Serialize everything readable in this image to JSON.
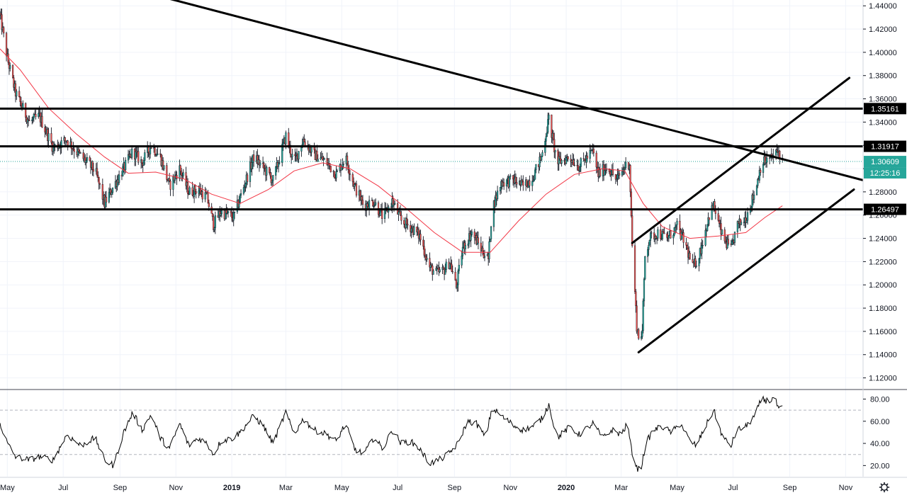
{
  "chart_data": {
    "type": "candlestick",
    "instrument_hint": "",
    "price_axis": {
      "min": 1.11,
      "max": 1.445,
      "ticks": [
        "1.44000",
        "1.42000",
        "1.40000",
        "1.38000",
        "1.36000",
        "1.34000",
        "1.32000",
        "1.30000",
        "1.28000",
        "1.26000",
        "1.24000",
        "1.22000",
        "1.20000",
        "1.18000",
        "1.16000",
        "1.14000",
        "1.12000"
      ]
    },
    "time_axis": {
      "start": "2018-04-23",
      "end": "2020-11-20",
      "labels": [
        {
          "text": "May",
          "date": "2018-05-01"
        },
        {
          "text": "Jul",
          "date": "2018-07-01"
        },
        {
          "text": "Sep",
          "date": "2018-09-01"
        },
        {
          "text": "Nov",
          "date": "2018-11-01"
        },
        {
          "text": "2019",
          "date": "2019-01-01",
          "year": true
        },
        {
          "text": "Mar",
          "date": "2019-03-01"
        },
        {
          "text": "May",
          "date": "2019-05-01"
        },
        {
          "text": "Jul",
          "date": "2019-07-01"
        },
        {
          "text": "Sep",
          "date": "2019-09-01"
        },
        {
          "text": "Nov",
          "date": "2019-11-01"
        },
        {
          "text": "2020",
          "date": "2020-01-01",
          "year": true
        },
        {
          "text": "Mar",
          "date": "2020-03-01"
        },
        {
          "text": "May",
          "date": "2020-05-01"
        },
        {
          "text": "Jul",
          "date": "2020-07-01"
        },
        {
          "text": "Sep",
          "date": "2020-09-01"
        },
        {
          "text": "Nov",
          "date": "2020-11-01"
        }
      ]
    },
    "price_path": [
      [
        "2018-04-23",
        1.432
      ],
      [
        "2018-05-01",
        1.395
      ],
      [
        "2018-05-10",
        1.365
      ],
      [
        "2018-05-25",
        1.34
      ],
      [
        "2018-06-05",
        1.345
      ],
      [
        "2018-06-20",
        1.318
      ],
      [
        "2018-07-05",
        1.325
      ],
      [
        "2018-07-15",
        1.315
      ],
      [
        "2018-07-25",
        1.307
      ],
      [
        "2018-08-05",
        1.298
      ],
      [
        "2018-08-15",
        1.27
      ],
      [
        "2018-08-25",
        1.285
      ],
      [
        "2018-09-05",
        1.3
      ],
      [
        "2018-09-15",
        1.315
      ],
      [
        "2018-09-25",
        1.305
      ],
      [
        "2018-10-05",
        1.32
      ],
      [
        "2018-10-15",
        1.31
      ],
      [
        "2018-10-25",
        1.285
      ],
      [
        "2018-11-05",
        1.3
      ],
      [
        "2018-11-15",
        1.28
      ],
      [
        "2018-11-25",
        1.282
      ],
      [
        "2018-12-05",
        1.275
      ],
      [
        "2018-12-12",
        1.252
      ],
      [
        "2018-12-20",
        1.263
      ],
      [
        "2019-01-03",
        1.258
      ],
      [
        "2019-01-10",
        1.275
      ],
      [
        "2019-01-25",
        1.31
      ],
      [
        "2019-02-05",
        1.3
      ],
      [
        "2019-02-15",
        1.29
      ],
      [
        "2019-03-01",
        1.328
      ],
      [
        "2019-03-10",
        1.305
      ],
      [
        "2019-03-20",
        1.325
      ],
      [
        "2019-04-01",
        1.312
      ],
      [
        "2019-04-15",
        1.305
      ],
      [
        "2019-04-25",
        1.295
      ],
      [
        "2019-05-05",
        1.31
      ],
      [
        "2019-05-15",
        1.285
      ],
      [
        "2019-05-25",
        1.268
      ],
      [
        "2019-06-05",
        1.272
      ],
      [
        "2019-06-15",
        1.258
      ],
      [
        "2019-06-25",
        1.272
      ],
      [
        "2019-07-05",
        1.255
      ],
      [
        "2019-07-15",
        1.25
      ],
      [
        "2019-07-25",
        1.242
      ],
      [
        "2019-08-05",
        1.215
      ],
      [
        "2019-08-12",
        1.21
      ],
      [
        "2019-08-20",
        1.212
      ],
      [
        "2019-08-27",
        1.22
      ],
      [
        "2019-09-03",
        1.198
      ],
      [
        "2019-09-10",
        1.232
      ],
      [
        "2019-09-20",
        1.245
      ],
      [
        "2019-10-01",
        1.23
      ],
      [
        "2019-10-08",
        1.222
      ],
      [
        "2019-10-12",
        1.265
      ],
      [
        "2019-10-22",
        1.288
      ],
      [
        "2019-11-05",
        1.29
      ],
      [
        "2019-11-15",
        1.285
      ],
      [
        "2019-11-25",
        1.292
      ],
      [
        "2019-12-05",
        1.31
      ],
      [
        "2019-12-13",
        1.343
      ],
      [
        "2019-12-22",
        1.305
      ],
      [
        "2020-01-05",
        1.31
      ],
      [
        "2020-01-15",
        1.302
      ],
      [
        "2020-01-30",
        1.315
      ],
      [
        "2020-02-05",
        1.295
      ],
      [
        "2020-02-15",
        1.302
      ],
      [
        "2020-02-25",
        1.29
      ],
      [
        "2020-03-05",
        1.302
      ],
      [
        "2020-03-10",
        1.305
      ],
      [
        "2020-03-13",
        1.235
      ],
      [
        "2020-03-18",
        1.165
      ],
      [
        "2020-03-20",
        1.155
      ],
      [
        "2020-03-24",
        1.16
      ],
      [
        "2020-03-27",
        1.225
      ],
      [
        "2020-04-01",
        1.24
      ],
      [
        "2020-04-10",
        1.245
      ],
      [
        "2020-04-20",
        1.24
      ],
      [
        "2020-05-01",
        1.25
      ],
      [
        "2020-05-10",
        1.235
      ],
      [
        "2020-05-18",
        1.215
      ],
      [
        "2020-05-25",
        1.225
      ],
      [
        "2020-06-05",
        1.26
      ],
      [
        "2020-06-10",
        1.268
      ],
      [
        "2020-06-20",
        1.24
      ],
      [
        "2020-06-29",
        1.23
      ],
      [
        "2020-07-05",
        1.25
      ],
      [
        "2020-07-15",
        1.258
      ],
      [
        "2020-07-25",
        1.28
      ],
      [
        "2020-08-01",
        1.305
      ],
      [
        "2020-08-10",
        1.308
      ],
      [
        "2020-08-20",
        1.315
      ],
      [
        "2020-08-24",
        1.306
      ]
    ],
    "moving_average": [
      [
        "2018-04-23",
        1.403
      ],
      [
        "2018-05-15",
        1.385
      ],
      [
        "2018-06-15",
        1.352
      ],
      [
        "2018-07-15",
        1.33
      ],
      [
        "2018-08-15",
        1.31
      ],
      [
        "2018-09-10",
        1.296
      ],
      [
        "2018-10-10",
        1.297
      ],
      [
        "2018-11-10",
        1.291
      ],
      [
        "2018-12-10",
        1.278
      ],
      [
        "2019-01-10",
        1.27
      ],
      [
        "2019-02-10",
        1.282
      ],
      [
        "2019-03-10",
        1.298
      ],
      [
        "2019-04-10",
        1.305
      ],
      [
        "2019-05-10",
        1.3
      ],
      [
        "2019-06-10",
        1.285
      ],
      [
        "2019-07-10",
        1.266
      ],
      [
        "2019-08-10",
        1.245
      ],
      [
        "2019-09-10",
        1.228
      ],
      [
        "2019-10-10",
        1.228
      ],
      [
        "2019-11-10",
        1.255
      ],
      [
        "2019-12-10",
        1.278
      ],
      [
        "2020-01-10",
        1.295
      ],
      [
        "2020-02-10",
        1.3
      ],
      [
        "2020-03-05",
        1.298
      ],
      [
        "2020-03-25",
        1.27
      ],
      [
        "2020-04-15",
        1.25
      ],
      [
        "2020-05-15",
        1.24
      ],
      [
        "2020-06-15",
        1.242
      ],
      [
        "2020-07-15",
        1.245
      ],
      [
        "2020-08-05",
        1.258
      ],
      [
        "2020-08-24",
        1.268
      ]
    ],
    "horizontal_levels": [
      {
        "label": "1.35161",
        "value": 1.35161
      },
      {
        "label": "1.31917",
        "value": 1.31917
      },
      {
        "label": "1.26497",
        "value": 1.26497
      }
    ],
    "trendlines": [
      {
        "name": "",
        "from": [
          "2018-07-25",
          1.465
        ],
        "to": [
          "2020-11-20",
          1.29
        ]
      },
      {
        "name": "",
        "from": [
          "2020-03-20",
          1.142
        ],
        "to": [
          "2020-11-10",
          1.282
        ]
      },
      {
        "name": "",
        "from": [
          "2020-03-13",
          1.236
        ],
        "to": [
          "2020-11-05",
          1.378
        ]
      }
    ],
    "current_price": {
      "label": "1.30609",
      "value": 1.30609,
      "countdown": "12:25:16"
    },
    "oscillator": {
      "ticks": [
        "80.00",
        "60.00",
        "40.00",
        "20.00"
      ],
      "range": [
        10,
        88
      ],
      "levels": [
        70,
        30
      ],
      "path": [
        [
          "2018-04-23",
          58
        ],
        [
          "2018-05-01",
          40
        ],
        [
          "2018-05-10",
          28
        ],
        [
          "2018-05-25",
          25
        ],
        [
          "2018-06-05",
          28
        ],
        [
          "2018-06-20",
          25
        ],
        [
          "2018-07-05",
          48
        ],
        [
          "2018-07-20",
          38
        ],
        [
          "2018-08-05",
          45
        ],
        [
          "2018-08-15",
          25
        ],
        [
          "2018-08-25",
          20
        ],
        [
          "2018-09-05",
          50
        ],
        [
          "2018-09-15",
          68
        ],
        [
          "2018-09-25",
          52
        ],
        [
          "2018-10-05",
          66
        ],
        [
          "2018-10-15",
          45
        ],
        [
          "2018-10-25",
          35
        ],
        [
          "2018-11-05",
          58
        ],
        [
          "2018-11-15",
          38
        ],
        [
          "2018-11-25",
          45
        ],
        [
          "2018-12-05",
          40
        ],
        [
          "2018-12-12",
          30
        ],
        [
          "2018-12-20",
          42
        ],
        [
          "2019-01-03",
          45
        ],
        [
          "2019-01-10",
          50
        ],
        [
          "2019-01-25",
          65
        ],
        [
          "2019-02-05",
          55
        ],
        [
          "2019-02-15",
          40
        ],
        [
          "2019-03-01",
          68
        ],
        [
          "2019-03-10",
          48
        ],
        [
          "2019-03-20",
          62
        ],
        [
          "2019-04-01",
          52
        ],
        [
          "2019-04-15",
          48
        ],
        [
          "2019-04-25",
          42
        ],
        [
          "2019-05-05",
          58
        ],
        [
          "2019-05-15",
          35
        ],
        [
          "2019-05-25",
          30
        ],
        [
          "2019-06-05",
          45
        ],
        [
          "2019-06-15",
          35
        ],
        [
          "2019-06-25",
          52
        ],
        [
          "2019-07-05",
          40
        ],
        [
          "2019-07-15",
          42
        ],
        [
          "2019-07-25",
          35
        ],
        [
          "2019-08-05",
          22
        ],
        [
          "2019-08-15",
          25
        ],
        [
          "2019-08-25",
          30
        ],
        [
          "2019-09-05",
          40
        ],
        [
          "2019-09-15",
          60
        ],
        [
          "2019-09-25",
          58
        ],
        [
          "2019-10-05",
          45
        ],
        [
          "2019-10-12",
          72
        ],
        [
          "2019-10-22",
          65
        ],
        [
          "2019-11-05",
          56
        ],
        [
          "2019-11-15",
          52
        ],
        [
          "2019-11-25",
          55
        ],
        [
          "2019-12-05",
          62
        ],
        [
          "2019-12-13",
          75
        ],
        [
          "2019-12-22",
          45
        ],
        [
          "2020-01-05",
          55
        ],
        [
          "2020-01-15",
          48
        ],
        [
          "2020-01-30",
          58
        ],
        [
          "2020-02-10",
          45
        ],
        [
          "2020-02-20",
          52
        ],
        [
          "2020-03-01",
          48
        ],
        [
          "2020-03-08",
          58
        ],
        [
          "2020-03-12",
          35
        ],
        [
          "2020-03-18",
          18
        ],
        [
          "2020-03-22",
          15
        ],
        [
          "2020-03-28",
          40
        ],
        [
          "2020-04-05",
          52
        ],
        [
          "2020-04-15",
          55
        ],
        [
          "2020-04-25",
          50
        ],
        [
          "2020-05-05",
          58
        ],
        [
          "2020-05-15",
          42
        ],
        [
          "2020-05-22",
          38
        ],
        [
          "2020-06-05",
          62
        ],
        [
          "2020-06-10",
          70
        ],
        [
          "2020-06-20",
          45
        ],
        [
          "2020-06-29",
          38
        ],
        [
          "2020-07-05",
          52
        ],
        [
          "2020-07-15",
          55
        ],
        [
          "2020-07-25",
          65
        ],
        [
          "2020-08-01",
          80
        ],
        [
          "2020-08-10",
          78
        ],
        [
          "2020-08-15",
          82
        ],
        [
          "2020-08-20",
          70
        ],
        [
          "2020-08-24",
          72
        ]
      ]
    }
  }
}
